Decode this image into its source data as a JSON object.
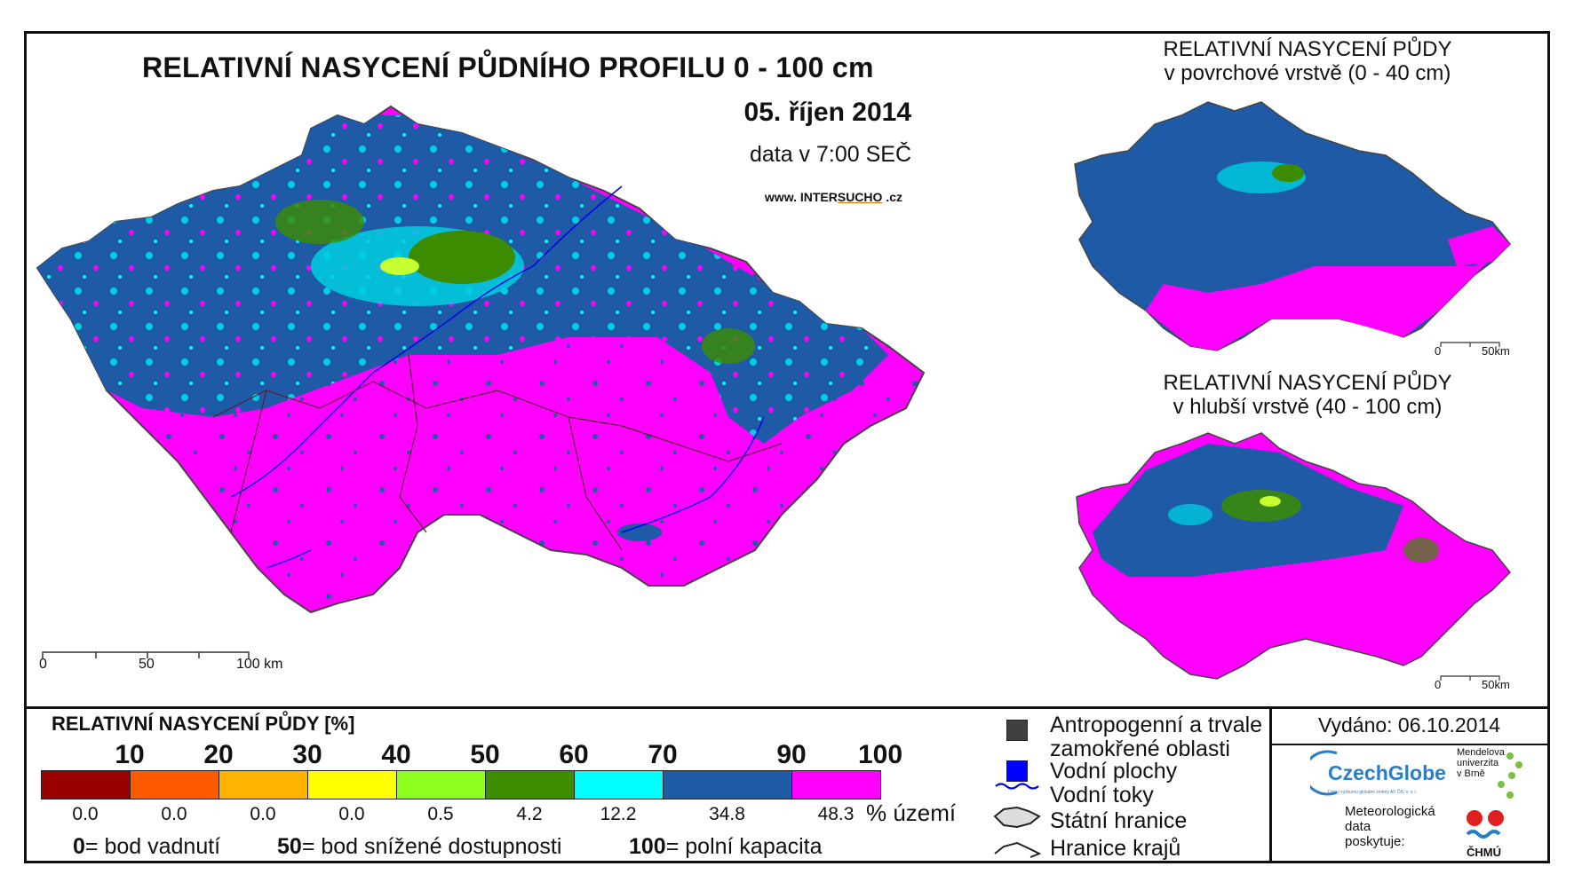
{
  "header": {
    "title": "RELATIVNÍ NASYCENÍ PŮDNÍHO PROFILU 0 - 100 cm",
    "date": "05. říjen 2014",
    "time": "data v 7:00 SEČ",
    "website_prefix": "www. INTER",
    "website_highlight": "SUCHO",
    "website_suffix": " .cz"
  },
  "inset_top": {
    "title_line1": "RELATIVNÍ NASYCENÍ PŮDY",
    "title_line2": "v povrchové vrstvě (0 - 40 cm)",
    "scale_0": "0",
    "scale_end": "50km"
  },
  "inset_bottom": {
    "title_line1": "RELATIVNÍ NASYCENÍ PŮDY",
    "title_line2": "v hlubší vrstvě (40 - 100 cm)",
    "scale_0": "0",
    "scale_end": "50km"
  },
  "main_scale": {
    "s0": "0",
    "s50": "50",
    "s100": "100 km"
  },
  "legend": {
    "title": "RELATIVNÍ NASYCENÍ PŮDY [%]",
    "breaks": [
      "10",
      "20",
      "30",
      "40",
      "50",
      "60",
      "70",
      "90",
      "100"
    ],
    "classes": [
      {
        "color": "#9b0000",
        "percent": "0.0"
      },
      {
        "color": "#ff5a00",
        "percent": "0.0"
      },
      {
        "color": "#ffb300",
        "percent": "0.0"
      },
      {
        "color": "#ffff00",
        "percent": "0.0"
      },
      {
        "color": "#8cff1e",
        "percent": "0.5"
      },
      {
        "color": "#3c8c00",
        "percent": "4.2"
      },
      {
        "color": "#00ffff",
        "percent": "12.2"
      },
      {
        "color": "#1e5aa5",
        "percent": "34.8"
      },
      {
        "color": "#ff00ff",
        "percent": "48.3"
      }
    ],
    "percent_unit": "% území",
    "definitions": [
      {
        "value": "0",
        "text": "= bod vadnutí"
      },
      {
        "value": "50",
        "text": "= bod snížené dostupnosti"
      },
      {
        "value": "100",
        "text": "= polní kapacita"
      }
    ]
  },
  "map_legend": {
    "anthropogenic_line1": "Antropogenní a trvale",
    "anthropogenic_line2": "zamokřené oblasti",
    "anthropogenic_color": "#404040",
    "water_bodies": "Vodní plochy",
    "water_color": "#0000ff",
    "rivers": "Vodní toky",
    "state_border": "Státní hranice",
    "region_border": "Hranice krajů"
  },
  "credits": {
    "issued": "Vydáno: 06.10.2014",
    "czechglobe": "CzechGlobe",
    "czechglobe_sub": "Ústav výzkumu globální změny AV ČR, v. v. i.",
    "mendel_line1": "Mendelova",
    "mendel_line2": "univerzita",
    "mendel_line3": "v Brně",
    "meteo_line1": "Meteorologická",
    "meteo_line2": "data",
    "meteo_line3": "poskytuje:",
    "chmu": "ČHMÚ"
  }
}
